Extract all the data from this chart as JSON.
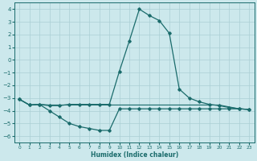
{
  "xlabel": "Humidex (Indice chaleur)",
  "xlim": [
    -0.5,
    23.5
  ],
  "ylim": [
    -6.5,
    4.5
  ],
  "yticks": [
    -6,
    -5,
    -4,
    -3,
    -2,
    -1,
    0,
    1,
    2,
    3,
    4
  ],
  "xticks": [
    0,
    1,
    2,
    3,
    4,
    5,
    6,
    7,
    8,
    9,
    10,
    11,
    12,
    13,
    14,
    15,
    16,
    17,
    18,
    19,
    20,
    21,
    22,
    23
  ],
  "bg_color": "#cce8ec",
  "grid_color": "#aacfd5",
  "line_color": "#1a6b6b",
  "line_main_x": [
    0,
    1,
    2,
    3,
    4,
    5,
    6,
    7,
    8,
    9,
    10,
    11,
    12,
    13,
    14,
    15,
    16,
    17,
    18,
    19,
    20,
    21,
    22,
    23
  ],
  "line_main_y": [
    -3.1,
    -3.55,
    -3.5,
    -3.6,
    -3.6,
    -3.5,
    -3.5,
    -3.5,
    -3.5,
    -3.5,
    -0.9,
    1.5,
    4.0,
    3.5,
    3.1,
    2.1,
    -2.3,
    -3.0,
    -3.3,
    -3.5,
    -3.6,
    -3.75,
    -3.85,
    -3.9
  ],
  "line_flat_x": [
    0,
    1,
    2,
    3,
    4,
    5,
    6,
    7,
    8,
    9,
    10,
    11,
    12,
    13,
    14,
    15,
    16,
    17,
    18,
    19,
    20,
    21,
    22,
    23
  ],
  "line_flat_y": [
    -3.1,
    -3.55,
    -3.5,
    -3.55,
    -3.55,
    -3.55,
    -3.55,
    -3.55,
    -3.55,
    -3.55,
    -3.55,
    -3.55,
    -3.55,
    -3.55,
    -3.55,
    -3.55,
    -3.55,
    -3.55,
    -3.55,
    -3.55,
    -3.55,
    -3.7,
    -3.85,
    -3.9
  ],
  "line_dip_x": [
    0,
    1,
    2,
    3,
    4,
    5,
    6,
    7,
    8,
    9,
    10,
    11,
    12,
    13,
    14,
    15,
    16,
    17,
    18,
    19,
    20,
    21,
    22,
    23
  ],
  "line_dip_y": [
    -3.1,
    -3.55,
    -3.5,
    -4.0,
    -4.5,
    -5.0,
    -5.25,
    -5.4,
    -5.55,
    -5.55,
    -3.85,
    -3.85,
    -3.85,
    -3.85,
    -3.85,
    -3.85,
    -3.85,
    -3.85,
    -3.85,
    -3.85,
    -3.85,
    -3.85,
    -3.85,
    -3.9
  ]
}
